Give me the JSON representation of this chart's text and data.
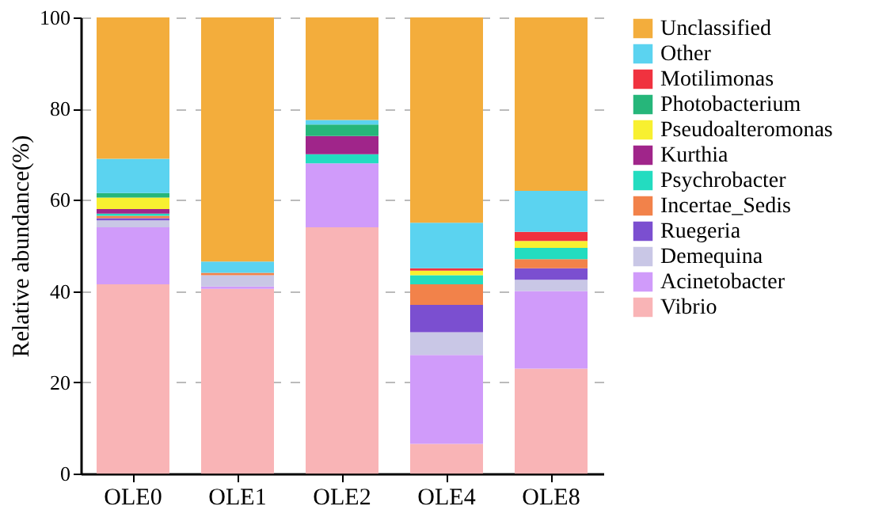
{
  "chart_data": {
    "type": "bar",
    "stacked": true,
    "ylabel": "Relative abundance(%)",
    "categories": [
      "OLE0",
      "OLE1",
      "OLE2",
      "OLE4",
      "OLE8"
    ],
    "ylim": [
      0,
      100
    ],
    "yticks": [
      0,
      20,
      40,
      60,
      80,
      100
    ],
    "grid": "y",
    "legend": "right",
    "series": [
      {
        "name": "Vibrio",
        "color": "#f9b4b6",
        "values": [
          41.5,
          40.5,
          54,
          6.5,
          23
        ]
      },
      {
        "name": "Acinetobacter",
        "color": "#d09bfa",
        "values": [
          12.5,
          0.5,
          14,
          19.5,
          17
        ]
      },
      {
        "name": "Demequina",
        "color": "#c9c7e6",
        "values": [
          1.5,
          2.5,
          0,
          5,
          2.5
        ]
      },
      {
        "name": "Ruegeria",
        "color": "#7b4fd0",
        "values": [
          0.5,
          0,
          0,
          6,
          2.5
        ]
      },
      {
        "name": "Incertae_Sedis",
        "color": "#f2824a",
        "values": [
          0.5,
          0.5,
          0,
          4.5,
          2
        ]
      },
      {
        "name": "Psychrobacter",
        "color": "#23dcc0",
        "values": [
          0.5,
          0,
          2,
          2,
          2.5
        ]
      },
      {
        "name": "Kurthia",
        "color": "#a0258a",
        "values": [
          1,
          0,
          4,
          0,
          0
        ]
      },
      {
        "name": "Pseudoalteromonas",
        "color": "#f8f030",
        "values": [
          2.5,
          0,
          0,
          1,
          1.5
        ]
      },
      {
        "name": "Photobacterium",
        "color": "#26b67a",
        "values": [
          1,
          0,
          2.5,
          0,
          0
        ]
      },
      {
        "name": "Motilimonas",
        "color": "#f0323f",
        "values": [
          0,
          0,
          0,
          0.5,
          2
        ]
      },
      {
        "name": "Other",
        "color": "#5bd3f0",
        "values": [
          7.5,
          2.5,
          1,
          10,
          9
        ]
      },
      {
        "name": "Unclassified",
        "color": "#f3ad3c",
        "values": [
          31,
          53.5,
          22.5,
          45,
          38
        ]
      }
    ]
  }
}
